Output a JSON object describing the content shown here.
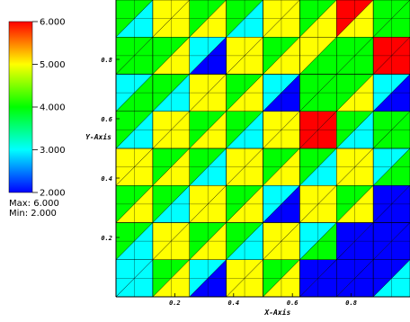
{
  "chart_data": {
    "type": "heatmap",
    "title": "",
    "xlabel": "X-Axis",
    "ylabel": "Y-Axis",
    "xlim": [
      0,
      1
    ],
    "ylim": [
      0,
      1
    ],
    "x_ticks": [
      "0.2",
      "0.4",
      "0.6",
      "0.8"
    ],
    "y_ticks": [
      "0.2",
      "0.4",
      "0.6",
      "0.8"
    ],
    "x_tick_values": [
      0.2,
      0.4,
      0.6,
      0.8
    ],
    "y_tick_values": [
      0.2,
      0.4,
      0.6,
      0.8
    ],
    "colorbar": {
      "min": 2.0,
      "max": 6.0,
      "ticks": [
        "6.000",
        "5.000",
        "4.000",
        "3.000",
        "2.000"
      ],
      "tick_values": [
        6,
        5,
        4,
        3,
        2
      ],
      "colors": [
        "#ff0000",
        "#ffff00",
        "#00ff00",
        "#00ffff",
        "#0000ff"
      ]
    },
    "stats": {
      "max_label": "Max: 6.000",
      "min_label": "Min: 2.000"
    },
    "grid_cols": 8,
    "grid_rows": 8,
    "cells": [
      [
        4,
        5,
        4,
        4,
        5,
        4,
        6,
        4
      ],
      [
        4,
        4,
        3,
        5,
        4,
        5,
        4,
        6
      ],
      [
        3,
        4,
        5,
        4,
        3,
        4,
        4,
        3
      ],
      [
        4,
        5,
        4,
        4,
        5,
        6,
        4,
        4
      ],
      [
        5,
        4,
        4,
        5,
        4,
        4,
        5,
        3
      ],
      [
        4,
        4,
        5,
        4,
        3,
        5,
        4,
        2
      ],
      [
        4,
        5,
        4,
        4,
        5,
        3,
        2,
        2
      ],
      [
        3,
        4,
        3,
        5,
        4,
        2,
        2,
        2
      ]
    ]
  }
}
